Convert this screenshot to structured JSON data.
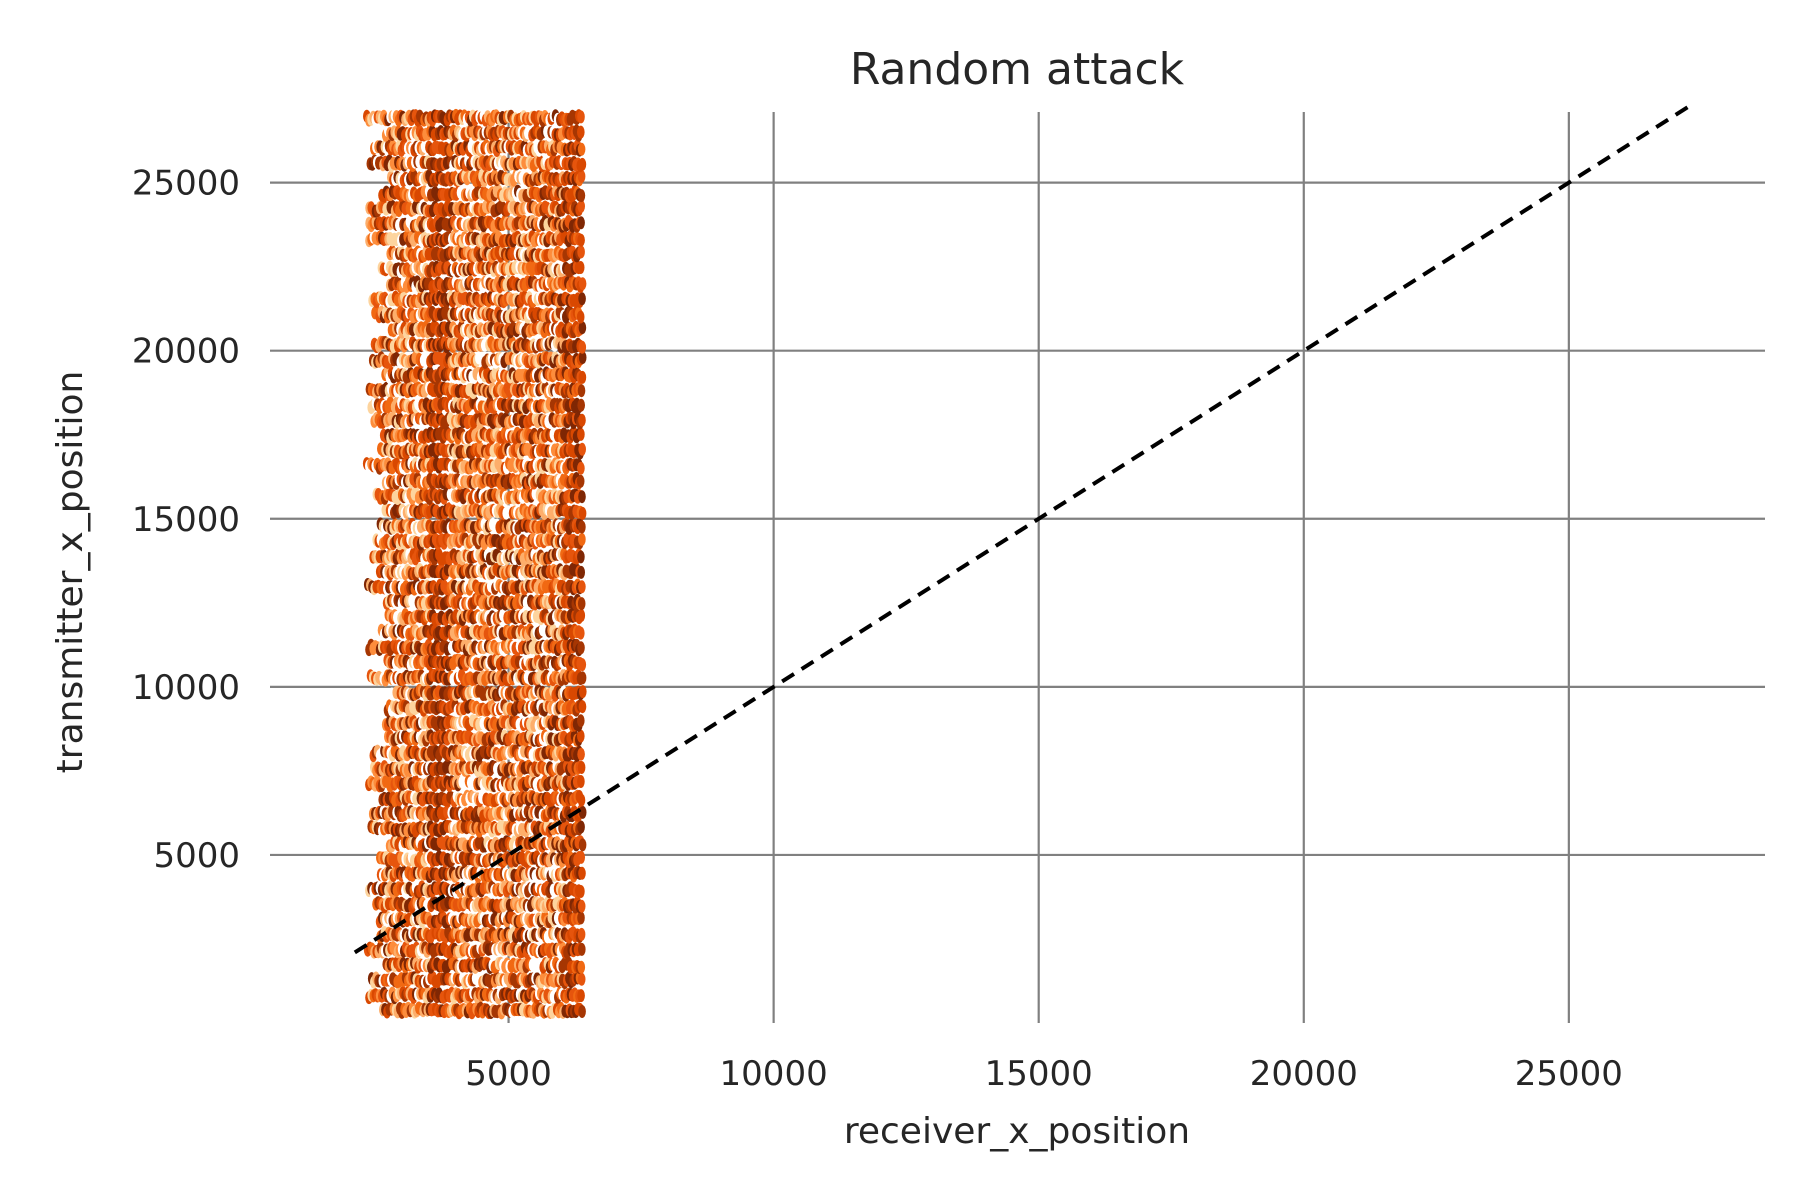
{
  "chart_data": {
    "type": "scatter",
    "title": "Random attack",
    "xlabel": "receiver_x_position",
    "ylabel": "transmitter_x_position",
    "xlim": [
      500,
      28700
    ],
    "ylim": [
      0,
      27100
    ],
    "xticks": [
      5000,
      10000,
      15000,
      20000,
      25000
    ],
    "yticks": [
      5000,
      10000,
      15000,
      20000,
      25000
    ],
    "xtick_labels": [
      "5000",
      "10000",
      "15000",
      "20000",
      "25000"
    ],
    "ytick_labels": [
      "5000",
      "10000",
      "15000",
      "20000",
      "25000"
    ],
    "grid": true,
    "point_cloud": {
      "x_range": [
        2300,
        6400
      ],
      "y_range": [
        300,
        27100
      ],
      "x_step": 40,
      "y_step": 450,
      "colormap": [
        "#ffffff",
        "#fdd49e",
        "#fdae6b",
        "#fd8d3c",
        "#f16913",
        "#e6550d",
        "#d94801",
        "#a63603",
        "#7f2704"
      ]
    },
    "reference_line": {
      "style": "dashed",
      "color": "#000000",
      "x": [
        2100,
        27300
      ],
      "y": [
        2100,
        27300
      ]
    }
  }
}
